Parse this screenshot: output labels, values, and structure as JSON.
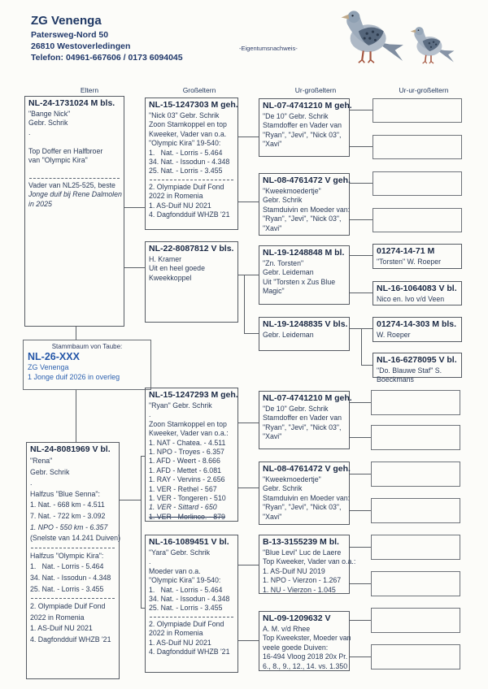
{
  "header": {
    "name": "ZG Venenga",
    "address1": "Patersweg-Nord 50",
    "address2": "26810 Westoverledingen",
    "phone": "Telefon: 04961-667606 / 0173 6094045",
    "watermark": "-Eigentumsnachweis-"
  },
  "column_headers": [
    "Eltern",
    "Großeltern",
    "Ur-großeltern",
    "Ur-ur-großeltern"
  ],
  "subject": {
    "label": "Stammbaum von Taube:",
    "ring": "NL-26-XXX",
    "line1": "ZG Venenga",
    "line2": "1 Jonge duif 2026 in overleg"
  },
  "colors": {
    "ink": "#2a3a58",
    "ring_blue": "#2456a8",
    "header_navy": "#1f3864",
    "border_gray": "#565b63"
  },
  "boxes": {
    "father": {
      "title": "NL-24-1731024 M bls.",
      "lines": [
        {
          "t": "\"Bange Nick\"",
          "s": ""
        },
        {
          "t": "Gebr. Schrik",
          "s": ""
        },
        {
          "t": ".",
          "s": ""
        },
        {
          "t": " ",
          "s": ""
        },
        {
          "t": "Top Doffer en Halfbroer",
          "s": ""
        },
        {
          "t": "van \"Olympic Kira\"",
          "s": ""
        },
        {
          "t": " ",
          "s": ""
        },
        {
          "t": "",
          "s": "hr"
        },
        {
          "t": "Vader van NL25-525, beste",
          "s": ""
        },
        {
          "t": "Jonge duif bij Rene Dalmolen",
          "s": "i"
        },
        {
          "t": "in 2025",
          "s": "i"
        }
      ]
    },
    "mother": {
      "title": "NL-24-8081969 V bl.",
      "lines": [
        {
          "t": "\"Rena\"",
          "s": ""
        },
        {
          "t": "Gebr. Schrik",
          "s": ""
        },
        {
          "t": ".",
          "s": ""
        },
        {
          "t": "Halfzus \"Blue Senna\":",
          "s": ""
        },
        {
          "t": "1. Nat. - 668 km - 4.511",
          "s": ""
        },
        {
          "t": "7. Nat. - 722 km - 3.092",
          "s": ""
        },
        {
          "t": "1. NPO - 550 km - 6.357",
          "s": "i"
        },
        {
          "t": "(Snelste van 14.241 Duiven)",
          "s": ""
        },
        {
          "t": "",
          "s": "hr"
        },
        {
          "t": "Halfzus \"Olympic Kira\":",
          "s": ""
        },
        {
          "t": "1.   Nat. - Lorris - 5.464",
          "s": ""
        },
        {
          "t": "34. Nat. - Issodun - 4.348",
          "s": ""
        },
        {
          "t": "25. Nat. - Lorris - 3.455",
          "s": ""
        },
        {
          "t": "",
          "s": "hr"
        },
        {
          "t": "2. Olympiade Duif Fond",
          "s": ""
        },
        {
          "t": "2022 in Romenia",
          "s": ""
        },
        {
          "t": "1. AS-Duif NU 2021",
          "s": ""
        },
        {
          "t": "4. Dagfondduif WHZB '21",
          "s": ""
        }
      ]
    },
    "ff": {
      "title": "NL-15-1247303 M geh.",
      "lines": [
        {
          "t": "\"Nick 03\" Gebr. Schrik",
          "s": ""
        },
        {
          "t": "Zoon Stamkoppel en top",
          "s": ""
        },
        {
          "t": "Kweeker, Vader van o.a.",
          "s": ""
        },
        {
          "t": "\"Olympic Kira\" 19-540:",
          "s": ""
        },
        {
          "t": "1.   Nat. - Lorris - 5.464",
          "s": ""
        },
        {
          "t": "34. Nat. - Issodun - 4.348",
          "s": ""
        },
        {
          "t": "25. Nat. - Lorris - 3.455",
          "s": ""
        },
        {
          "t": "",
          "s": "hr"
        },
        {
          "t": "2. Olympiade Duif Fond",
          "s": ""
        },
        {
          "t": "2022 in Romenia",
          "s": ""
        },
        {
          "t": "1. AS-Duif NU 2021",
          "s": ""
        },
        {
          "t": "4. Dagfondduif WHZB '21",
          "s": ""
        }
      ]
    },
    "fm": {
      "title": "NL-22-8087812 V bls.",
      "lines": [
        {
          "t": "H. Kramer",
          "s": ""
        },
        {
          "t": "Uit en heel goede",
          "s": ""
        },
        {
          "t": "Kweekkoppel",
          "s": ""
        }
      ]
    },
    "mf": {
      "title": "NL-15-1247293 M geh.",
      "lines": [
        {
          "t": "\"Ryan\" Gebr. Schrik",
          "s": ""
        },
        {
          "t": ".",
          "s": ""
        },
        {
          "t": "Zoon Stamkoppel en top",
          "s": ""
        },
        {
          "t": "Kweeker, Vader van o.a.:",
          "s": ""
        },
        {
          "t": "1. NAT - Chatea. - 4.511",
          "s": ""
        },
        {
          "t": "1. NPO - Troyes - 6.357",
          "s": ""
        },
        {
          "t": "1. AFD - Weert - 8.666",
          "s": ""
        },
        {
          "t": "1. AFD - Mettet - 6.081",
          "s": ""
        },
        {
          "t": "1. RAY - Vervins - 2.656",
          "s": ""
        },
        {
          "t": "1. VER - Rethel - 567",
          "s": ""
        },
        {
          "t": "1. VER - Tongeren - 510",
          "s": ""
        },
        {
          "t": "1. VER - Sittard - 650",
          "s": "i"
        },
        {
          "t": "1. VER - Morlinco. - 879",
          "s": "strike"
        }
      ]
    },
    "mm": {
      "title": "NL-16-1089451 V bl.",
      "lines": [
        {
          "t": "\"Yara\" Gebr. Schrik",
          "s": ""
        },
        {
          "t": ".",
          "s": ""
        },
        {
          "t": "Moeder van o.a.",
          "s": ""
        },
        {
          "t": "\"Olympic Kira\" 19-540:",
          "s": ""
        },
        {
          "t": "1.   Nat. - Lorris - 5.464",
          "s": ""
        },
        {
          "t": "34. Nat. - Issodun - 4.348",
          "s": ""
        },
        {
          "t": "25. Nat. - Lorris - 3.455",
          "s": ""
        },
        {
          "t": "",
          "s": "hr"
        },
        {
          "t": "2. Olympiade Duif Fond",
          "s": ""
        },
        {
          "t": "2022 in Romenia",
          "s": ""
        },
        {
          "t": "1. AS-Duif NU 2021",
          "s": ""
        },
        {
          "t": "4. Dagfondduif WHZB '21",
          "s": ""
        }
      ]
    },
    "fff": {
      "title": "NL-07-4741210 M geh.",
      "lines": [
        {
          "t": "\"De 10\" Gebr. Schrik",
          "s": ""
        },
        {
          "t": "Stamdoffer en Vader van",
          "s": ""
        },
        {
          "t": "\"Ryan\", \"Jevi\", \"Nick 03\",",
          "s": ""
        },
        {
          "t": "\"Xavi\"",
          "s": ""
        }
      ]
    },
    "ffm": {
      "title": "NL-08-4761472 V geh.",
      "lines": [
        {
          "t": "\"Kweekmoedertje\"",
          "s": ""
        },
        {
          "t": "Gebr. Schrik",
          "s": ""
        },
        {
          "t": "Stamduivin en Moeder van:",
          "s": ""
        },
        {
          "t": "\"Ryan\", \"Jevi\", \"Nick 03\",",
          "s": ""
        },
        {
          "t": "\"Xavi\"",
          "s": ""
        }
      ]
    },
    "fmf": {
      "title": "NL-19-1248848 M bl.",
      "lines": [
        {
          "t": "\"Zn. Torsten\"",
          "s": ""
        },
        {
          "t": "Gebr. Leideman",
          "s": ""
        },
        {
          "t": "Uit \"Torsten x Zus Blue",
          "s": ""
        },
        {
          "t": "Magic\"",
          "s": ""
        }
      ]
    },
    "fmm": {
      "title": "NL-19-1248835 V bls.",
      "lines": [
        {
          "t": "Gebr. Leideman",
          "s": ""
        }
      ]
    },
    "mff": {
      "title": "NL-07-4741210 M geh.",
      "lines": [
        {
          "t": "\"De 10\" Gebr. Schrik",
          "s": ""
        },
        {
          "t": "Stamdoffer en Vader van",
          "s": ""
        },
        {
          "t": "\"Ryan\", \"Jevi\", \"Nick 03\",",
          "s": ""
        },
        {
          "t": "\"Xavi\"",
          "s": ""
        }
      ]
    },
    "mfm": {
      "title": "NL-08-4761472 V geh.",
      "lines": [
        {
          "t": "\"Kweekmoedertje\"",
          "s": ""
        },
        {
          "t": "Gebr. Schrik",
          "s": ""
        },
        {
          "t": "Stamduivin en Moeder van:",
          "s": ""
        },
        {
          "t": "\"Ryan\", \"Jevi\", \"Nick 03\",",
          "s": ""
        },
        {
          "t": "\"Xavi\"",
          "s": ""
        }
      ]
    },
    "mmf": {
      "title": "B-13-3155239 M bl.",
      "lines": [
        {
          "t": "\"Blue Levi\" Luc de Laere",
          "s": ""
        },
        {
          "t": "Top Kweeker, Vader van o.a.:",
          "s": ""
        },
        {
          "t": "1. AS-Duif NU 2019",
          "s": ""
        },
        {
          "t": "1. NPO - Vierzon - 1.267",
          "s": ""
        },
        {
          "t": "1. NU - Vierzon - 1.045",
          "s": ""
        }
      ]
    },
    "mmm": {
      "title": "NL-09-1209632 V",
      "lines": [
        {
          "t": "A. M. v/d Rhee",
          "s": ""
        },
        {
          "t": "Top Kweekster, Moeder van",
          "s": ""
        },
        {
          "t": "veele goede Duiven:",
          "s": ""
        },
        {
          "t": "16-494 Vloog 2018 20x Pr.",
          "s": ""
        },
        {
          "t": "6., 8., 9., 12., 14. vs. 1.350",
          "s": ""
        }
      ]
    },
    "gg1": {
      "title": "01274-14-71 M",
      "lines": [
        {
          "t": "\"Torsten\" W. Roeper",
          "s": ""
        }
      ]
    },
    "gg2": {
      "title": "NL-16-1064083 V bl.",
      "lines": [
        {
          "t": "Nico en. Ivo v/d Veen",
          "s": ""
        }
      ]
    },
    "gg3": {
      "title": "01274-14-303 M bls.",
      "lines": [
        {
          "t": "W. Roeper",
          "s": ""
        }
      ]
    },
    "gg4": {
      "title": "NL-16-6278095 V bl.",
      "lines": [
        {
          "t": "\"Do. Blauwe Staf\" S.",
          "s": ""
        },
        {
          "t": "Boeckmans",
          "s": ""
        }
      ]
    }
  }
}
